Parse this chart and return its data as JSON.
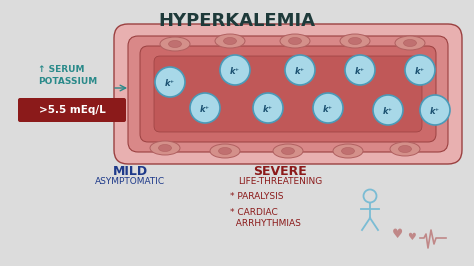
{
  "bg_color": "#dcdcdc",
  "title": "HYPERKALEMIA",
  "title_color": "#1e3a3a",
  "title_fontsize": 13,
  "serum_label": "↑ SERUM\nPOTASSIUM",
  "serum_color": "#2a8a8a",
  "box_label": ">5.5 mEq/L",
  "box_bg": "#8b1a1a",
  "box_text_color": "#ffffff",
  "mild_label": "MILD",
  "mild_sub": "ASYMPTOMATIC",
  "mild_color": "#1e3a8a",
  "severe_label": "SEVERE",
  "severe_sub": "LIFE-THREATENING",
  "severe_color": "#8b1a1a",
  "bullet1": "* PARALYSIS",
  "bullet2": "* CARDIAC\n  ARRHYTHMIAS",
  "bullet_color": "#8b1a1a",
  "vessel_outermost": "#e8b0b0",
  "vessel_outer": "#d98888",
  "vessel_mid": "#cc6a6a",
  "vessel_inner": "#c05858",
  "vessel_edge": "#9a4040",
  "k_circle_fill": "#a8d8e8",
  "k_circle_edge": "#4a9ab8",
  "k_text_color": "#1a5070",
  "cell_fill": "#d4908a",
  "cell_edge": "#b06060",
  "cell_nucleus": "#c07070",
  "person_color": "#7abcd4",
  "heart_color": "#c08888"
}
